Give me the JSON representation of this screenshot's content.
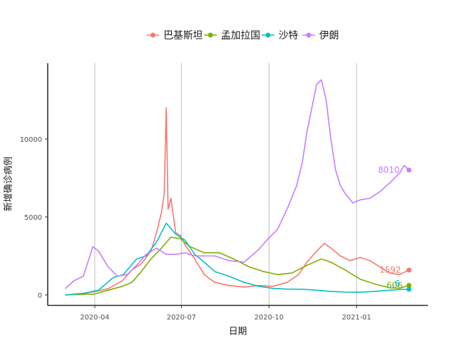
{
  "chart_data": {
    "type": "line",
    "xlabel": "日期",
    "ylabel": "新增确诊病例",
    "x_range": [
      "2020-03-01",
      "2021-02-28"
    ],
    "ylim": [
      0,
      14500
    ],
    "x_ticks": [
      {
        "date": "2020-04-01",
        "label": "2020-04"
      },
      {
        "date": "2020-07-01",
        "label": "2020-07"
      },
      {
        "date": "2020-10-01",
        "label": "2020-10"
      },
      {
        "date": "2021-01-01",
        "label": "2021-01"
      }
    ],
    "y_ticks": [
      0,
      5000,
      10000
    ],
    "grid": "vertical major lines",
    "legend_position": "top",
    "series": [
      {
        "name": "巴基斯坦",
        "color": "#F8766D",
        "end_label": "1592",
        "points": [
          [
            "2020-03-01",
            0
          ],
          [
            "2020-03-15",
            30
          ],
          [
            "2020-03-31",
            200
          ],
          [
            "2020-04-15",
            400
          ],
          [
            "2020-04-30",
            900
          ],
          [
            "2020-05-10",
            1600
          ],
          [
            "2020-05-20",
            2000
          ],
          [
            "2020-05-30",
            2800
          ],
          [
            "2020-06-05",
            4000
          ],
          [
            "2020-06-10",
            5300
          ],
          [
            "2020-06-13",
            6500
          ],
          [
            "2020-06-15",
            12000
          ],
          [
            "2020-06-17",
            5500
          ],
          [
            "2020-06-20",
            6200
          ],
          [
            "2020-06-25",
            4000
          ],
          [
            "2020-06-30",
            3800
          ],
          [
            "2020-07-05",
            3200
          ],
          [
            "2020-07-15",
            2300
          ],
          [
            "2020-07-25",
            1300
          ],
          [
            "2020-08-05",
            800
          ],
          [
            "2020-08-20",
            600
          ],
          [
            "2020-09-05",
            500
          ],
          [
            "2020-09-20",
            600
          ],
          [
            "2020-10-05",
            550
          ],
          [
            "2020-10-20",
            800
          ],
          [
            "2020-11-01",
            1300
          ],
          [
            "2020-11-10",
            2100
          ],
          [
            "2020-11-20",
            2800
          ],
          [
            "2020-11-28",
            3300
          ],
          [
            "2020-12-05",
            3000
          ],
          [
            "2020-12-15",
            2500
          ],
          [
            "2020-12-25",
            2200
          ],
          [
            "2021-01-05",
            2400
          ],
          [
            "2021-01-15",
            2200
          ],
          [
            "2021-01-25",
            1800
          ],
          [
            "2021-02-05",
            1400
          ],
          [
            "2021-02-15",
            1300
          ],
          [
            "2021-02-25",
            1592
          ]
        ]
      },
      {
        "name": "孟加拉国",
        "color": "#7CAE00",
        "end_label": "606",
        "points": [
          [
            "2020-03-01",
            0
          ],
          [
            "2020-03-31",
            50
          ],
          [
            "2020-04-15",
            300
          ],
          [
            "2020-04-30",
            550
          ],
          [
            "2020-05-10",
            800
          ],
          [
            "2020-05-20",
            1500
          ],
          [
            "2020-05-30",
            2300
          ],
          [
            "2020-06-10",
            3000
          ],
          [
            "2020-06-20",
            3700
          ],
          [
            "2020-06-30",
            3600
          ],
          [
            "2020-07-10",
            3100
          ],
          [
            "2020-07-25",
            2700
          ],
          [
            "2020-08-10",
            2700
          ],
          [
            "2020-08-25",
            2300
          ],
          [
            "2020-09-10",
            1800
          ],
          [
            "2020-09-25",
            1500
          ],
          [
            "2020-10-10",
            1300
          ],
          [
            "2020-10-25",
            1400
          ],
          [
            "2020-11-10",
            1900
          ],
          [
            "2020-11-25",
            2300
          ],
          [
            "2020-12-05",
            2100
          ],
          [
            "2020-12-20",
            1600
          ],
          [
            "2021-01-05",
            1000
          ],
          [
            "2021-01-20",
            700
          ],
          [
            "2021-02-05",
            450
          ],
          [
            "2021-02-15",
            420
          ],
          [
            "2021-02-25",
            606
          ]
        ]
      },
      {
        "name": "沙特",
        "color": "#00BFC4",
        "end_label": "…6",
        "points": [
          [
            "2020-03-01",
            0
          ],
          [
            "2020-03-20",
            100
          ],
          [
            "2020-04-05",
            300
          ],
          [
            "2020-04-20",
            1100
          ],
          [
            "2020-05-01",
            1300
          ],
          [
            "2020-05-15",
            2300
          ],
          [
            "2020-05-25",
            2500
          ],
          [
            "2020-06-05",
            3400
          ],
          [
            "2020-06-15",
            4600
          ],
          [
            "2020-06-25",
            3900
          ],
          [
            "2020-07-05",
            3500
          ],
          [
            "2020-07-15",
            2600
          ],
          [
            "2020-07-25",
            2100
          ],
          [
            "2020-08-05",
            1500
          ],
          [
            "2020-08-20",
            1200
          ],
          [
            "2020-09-05",
            800
          ],
          [
            "2020-09-20",
            550
          ],
          [
            "2020-10-05",
            420
          ],
          [
            "2020-10-20",
            370
          ],
          [
            "2020-11-05",
            360
          ],
          [
            "2020-11-20",
            300
          ],
          [
            "2020-12-05",
            220
          ],
          [
            "2020-12-20",
            180
          ],
          [
            "2021-01-05",
            170
          ],
          [
            "2021-01-20",
            220
          ],
          [
            "2021-02-05",
            300
          ],
          [
            "2021-02-15",
            340
          ],
          [
            "2021-02-25",
            360
          ]
        ]
      },
      {
        "name": "伊朗",
        "color": "#C77CFF",
        "end_label": "8010",
        "points": [
          [
            "2020-03-01",
            400
          ],
          [
            "2020-03-10",
            900
          ],
          [
            "2020-03-20",
            1200
          ],
          [
            "2020-03-30",
            3100
          ],
          [
            "2020-04-05",
            2800
          ],
          [
            "2020-04-15",
            1800
          ],
          [
            "2020-04-25",
            1200
          ],
          [
            "2020-05-05",
            1300
          ],
          [
            "2020-05-15",
            1900
          ],
          [
            "2020-05-25",
            2600
          ],
          [
            "2020-06-05",
            3000
          ],
          [
            "2020-06-15",
            2600
          ],
          [
            "2020-06-25",
            2600
          ],
          [
            "2020-07-05",
            2700
          ],
          [
            "2020-07-15",
            2500
          ],
          [
            "2020-07-25",
            2500
          ],
          [
            "2020-08-05",
            2500
          ],
          [
            "2020-08-20",
            2200
          ],
          [
            "2020-09-05",
            2100
          ],
          [
            "2020-09-20",
            2900
          ],
          [
            "2020-09-30",
            3600
          ],
          [
            "2020-10-10",
            4200
          ],
          [
            "2020-10-20",
            5500
          ],
          [
            "2020-10-30",
            7000
          ],
          [
            "2020-11-05",
            8500
          ],
          [
            "2020-11-10",
            10500
          ],
          [
            "2020-11-15",
            12000
          ],
          [
            "2020-11-20",
            13500
          ],
          [
            "2020-11-25",
            13800
          ],
          [
            "2020-11-30",
            12500
          ],
          [
            "2020-12-05",
            10000
          ],
          [
            "2020-12-10",
            8000
          ],
          [
            "2020-12-15",
            7000
          ],
          [
            "2020-12-20",
            6500
          ],
          [
            "2020-12-28",
            5900
          ],
          [
            "2021-01-05",
            6100
          ],
          [
            "2021-01-15",
            6200
          ],
          [
            "2021-01-25",
            6600
          ],
          [
            "2021-02-05",
            7200
          ],
          [
            "2021-02-15",
            7800
          ],
          [
            "2021-02-20",
            8300
          ],
          [
            "2021-02-25",
            8010
          ]
        ]
      }
    ]
  }
}
